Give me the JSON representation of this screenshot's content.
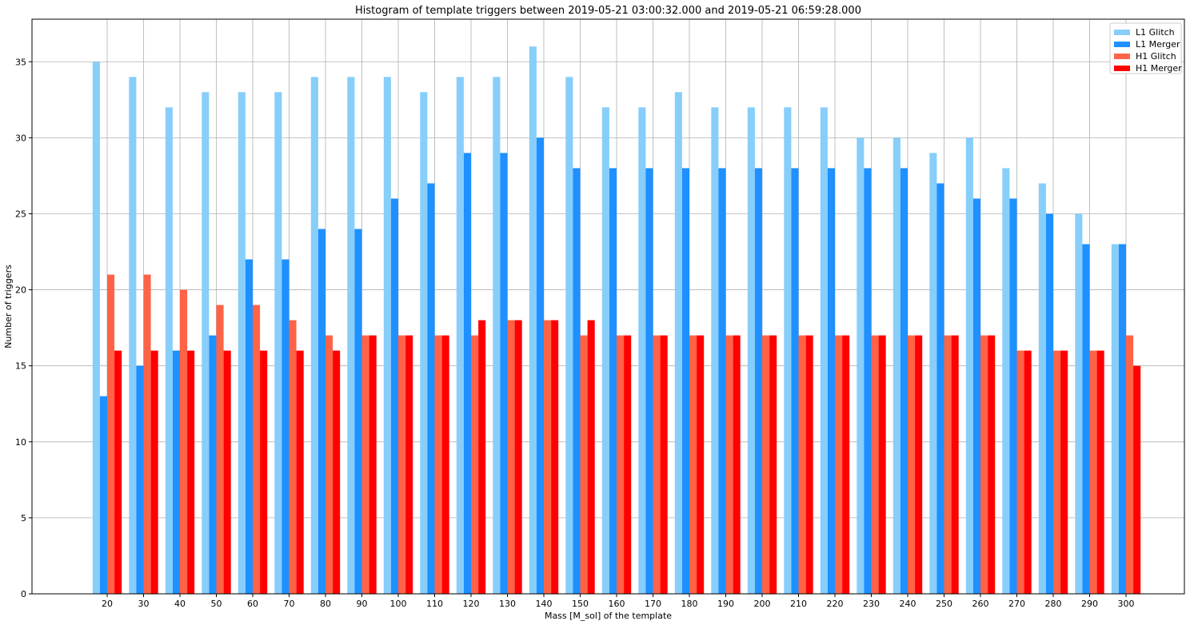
{
  "chart_data": {
    "type": "bar",
    "title": "Histogram of template triggers between 2019-05-21 03:00:32.000 and 2019-05-21 06:59:28.000",
    "xlabel": "Mass [M_sol] of the template",
    "ylabel": "Number of triggers",
    "categories": [
      20,
      30,
      40,
      50,
      60,
      70,
      80,
      90,
      100,
      110,
      120,
      130,
      140,
      150,
      160,
      170,
      180,
      190,
      200,
      210,
      220,
      230,
      240,
      250,
      260,
      270,
      280,
      290,
      300
    ],
    "yticks": [
      0,
      5,
      10,
      15,
      20,
      25,
      30,
      35
    ],
    "ylim": [
      0,
      37.8
    ],
    "grid": true,
    "legend_position": "top-right",
    "series": [
      {
        "name": "L1 Glitch",
        "color": "#87CEFA",
        "values": [
          35,
          34,
          32,
          33,
          33,
          33,
          34,
          34,
          34,
          33,
          34,
          34,
          36,
          34,
          32,
          32,
          33,
          32,
          32,
          32,
          32,
          30,
          30,
          29,
          30,
          28,
          27,
          25,
          23
        ]
      },
      {
        "name": "L1 Merger",
        "color": "#1E90FF",
        "values": [
          13,
          15,
          16,
          17,
          22,
          22,
          24,
          24,
          26,
          27,
          29,
          29,
          30,
          28,
          28,
          28,
          28,
          28,
          28,
          28,
          28,
          28,
          28,
          27,
          26,
          26,
          25,
          23,
          23
        ]
      },
      {
        "name": "H1 Glitch",
        "color": "#FF6347",
        "values": [
          21,
          21,
          20,
          19,
          19,
          18,
          17,
          17,
          17,
          17,
          17,
          18,
          18,
          17,
          17,
          17,
          17,
          17,
          17,
          17,
          17,
          17,
          17,
          17,
          17,
          16,
          16,
          16,
          17
        ]
      },
      {
        "name": "H1 Merger",
        "color": "#FF0000",
        "values": [
          16,
          16,
          16,
          16,
          16,
          16,
          16,
          17,
          17,
          17,
          18,
          18,
          18,
          18,
          17,
          17,
          17,
          17,
          17,
          17,
          17,
          17,
          17,
          17,
          17,
          16,
          16,
          16,
          15
        ]
      }
    ]
  }
}
